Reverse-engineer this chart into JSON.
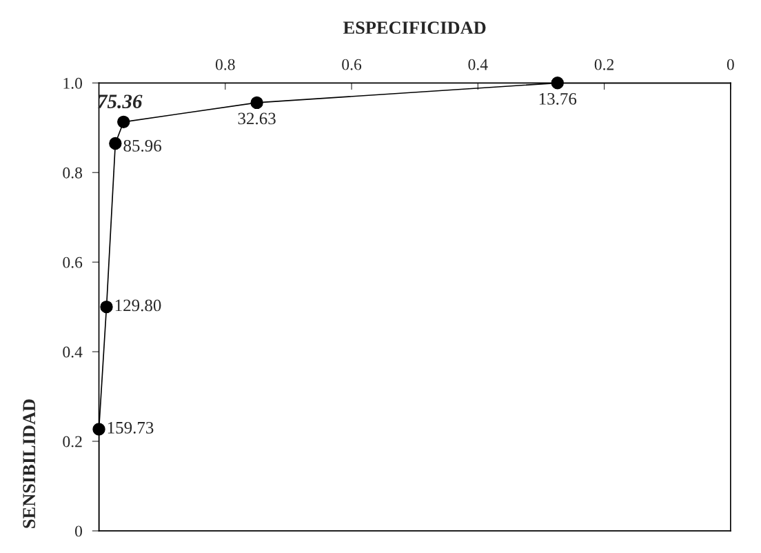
{
  "chart_data": {
    "type": "line",
    "xlabel": "ESPECIFICIDAD",
    "ylabel": "SENSIBILIDAD",
    "xlim": [
      1,
      0
    ],
    "xticks": [
      0.8,
      0.6,
      0.4,
      0.2,
      0
    ],
    "ylim": [
      0,
      1
    ],
    "yticks": [
      0,
      0.2,
      0.4,
      0.6,
      0.8,
      {
        "value": 1,
        "label": "1.0"
      }
    ],
    "grid": false,
    "legend": false,
    "series": [
      {
        "color": "#000000",
        "marker": "none",
        "x": [
          1,
          1,
          0.988,
          0.974,
          0.961,
          0.75,
          0.274,
          0
        ],
        "values": [
          0,
          0.227,
          0.5,
          0.865,
          0.913,
          0.956,
          1.0,
          1.0
        ]
      },
      {
        "type": "scatter",
        "color": "#000000",
        "marker": "circle",
        "x": [
          1,
          0.988,
          0.974,
          0.961,
          0.75,
          0.274
        ],
        "values": [
          0.227,
          0.5,
          0.865,
          0.913,
          0.956,
          1.0
        ]
      }
    ],
    "annotations": [
      {
        "text": "159.73",
        "x": 1,
        "y": 0.227
      },
      {
        "text": "129.80",
        "x": 0.988,
        "y": 0.5
      },
      {
        "text": "85.96",
        "x": 0.974,
        "y": 0.865
      },
      {
        "text": "75.36",
        "x": 0.961,
        "y": 0.913
      },
      {
        "text": "32.63",
        "x": 0.75,
        "y": 0.956
      },
      {
        "text": "13.76",
        "x": 0.274,
        "y": 1.0
      }
    ]
  }
}
